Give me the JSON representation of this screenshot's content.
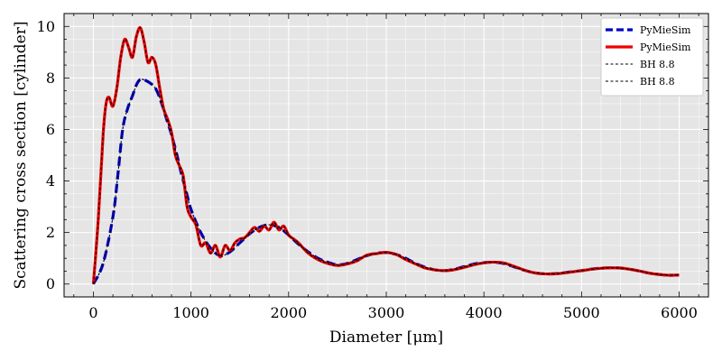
{
  "chart_data": {
    "type": "line",
    "title": "",
    "xlabel": "Diameter [μm]",
    "ylabel": "Scattering cross section [cylinder]",
    "xlim": [
      -300,
      6300
    ],
    "ylim": [
      -0.5,
      10.5
    ],
    "xticks": [
      0,
      1000,
      2000,
      3000,
      4000,
      5000,
      6000
    ],
    "xtick_labels": [
      "0",
      "1000",
      "2000",
      "3000",
      "4000",
      "5000",
      "6000"
    ],
    "yticks": [
      0,
      2,
      4,
      6,
      8,
      10
    ],
    "ytick_labels": [
      "0",
      "2",
      "4",
      "6",
      "8",
      "10"
    ],
    "grid": true,
    "legend_position": "top-right",
    "colors": {
      "plot_bg": "#e5e5e5",
      "grid": "#ffffff",
      "blue": "#0000cc",
      "red": "#ee0000",
      "black": "#000000"
    },
    "series": [
      {
        "name": "PyMieSim",
        "color": "#0000cc",
        "style": "dashed",
        "x": [
          0,
          100,
          200,
          250,
          300,
          350,
          400,
          450,
          500,
          600,
          650,
          700,
          750,
          800,
          850,
          900,
          950,
          1000,
          1100,
          1200,
          1300,
          1400,
          1500,
          1600,
          1700,
          1800,
          1900,
          2000,
          2100,
          2200,
          2300,
          2400,
          2500,
          2600,
          2700,
          2800,
          2900,
          3000,
          3100,
          3200,
          3300,
          3400,
          3500,
          3600,
          3700,
          3800,
          3900,
          4000,
          4100,
          4200,
          4300,
          4400,
          4500,
          4600,
          4700,
          4800,
          4900,
          5000,
          5100,
          5200,
          5300,
          5400,
          5500,
          5600,
          5700,
          5800,
          5900,
          6000
        ],
        "y": [
          0,
          0.8,
          2.6,
          4.2,
          6.0,
          6.8,
          7.3,
          7.8,
          7.95,
          7.75,
          7.5,
          7.0,
          6.4,
          5.8,
          5.1,
          4.3,
          3.6,
          2.9,
          2.0,
          1.4,
          1.1,
          1.25,
          1.6,
          1.95,
          2.2,
          2.3,
          2.2,
          1.9,
          1.55,
          1.25,
          1.0,
          0.85,
          0.75,
          0.8,
          0.95,
          1.1,
          1.2,
          1.22,
          1.15,
          1.0,
          0.8,
          0.65,
          0.55,
          0.52,
          0.58,
          0.68,
          0.78,
          0.83,
          0.85,
          0.8,
          0.68,
          0.55,
          0.45,
          0.4,
          0.4,
          0.43,
          0.48,
          0.52,
          0.58,
          0.62,
          0.63,
          0.62,
          0.57,
          0.5,
          0.42,
          0.37,
          0.34,
          0.35
        ]
      },
      {
        "name": "PyMieSim",
        "color": "#ee0000",
        "style": "solid",
        "x": [
          0,
          50,
          100,
          130,
          160,
          200,
          240,
          280,
          320,
          360,
          400,
          440,
          480,
          520,
          560,
          600,
          640,
          680,
          720,
          760,
          800,
          840,
          880,
          920,
          960,
          1000,
          1050,
          1100,
          1150,
          1200,
          1250,
          1300,
          1350,
          1400,
          1450,
          1500,
          1550,
          1600,
          1650,
          1700,
          1750,
          1800,
          1850,
          1900,
          1950,
          2000,
          2050,
          2100,
          2200,
          2300,
          2400,
          2500,
          2600,
          2700,
          2800,
          2900,
          3000,
          3100,
          3200,
          3300,
          3400,
          3500,
          3600,
          3700,
          3800,
          3900,
          4000,
          4100,
          4200,
          4300,
          4400,
          4500,
          4600,
          4700,
          4800,
          4900,
          5000,
          5100,
          5200,
          5300,
          5400,
          5500,
          5600,
          5700,
          5800,
          5900,
          6000
        ],
        "y": [
          0,
          2.5,
          5.8,
          7.0,
          7.25,
          6.9,
          7.6,
          8.8,
          9.5,
          9.2,
          8.8,
          9.6,
          9.95,
          9.4,
          8.6,
          8.8,
          8.5,
          7.6,
          6.8,
          6.4,
          5.9,
          5.0,
          4.6,
          4.2,
          3.0,
          2.6,
          2.3,
          1.5,
          1.6,
          1.2,
          1.5,
          1.05,
          1.5,
          1.3,
          1.6,
          1.75,
          1.8,
          2.0,
          2.2,
          2.05,
          2.25,
          2.1,
          2.4,
          2.1,
          2.25,
          1.9,
          1.75,
          1.6,
          1.2,
          0.95,
          0.8,
          0.72,
          0.78,
          0.9,
          1.12,
          1.18,
          1.23,
          1.15,
          0.95,
          0.78,
          0.62,
          0.55,
          0.52,
          0.56,
          0.65,
          0.75,
          0.82,
          0.85,
          0.82,
          0.7,
          0.56,
          0.45,
          0.4,
          0.39,
          0.42,
          0.47,
          0.52,
          0.57,
          0.61,
          0.63,
          0.62,
          0.57,
          0.5,
          0.42,
          0.37,
          0.34,
          0.35
        ]
      },
      {
        "name": "BH 8.8",
        "color": "#000000",
        "style": "dashed-thin",
        "ref": 0
      },
      {
        "name": "BH 8.8",
        "color": "#000000",
        "style": "dashed-thin",
        "ref": 1
      }
    ]
  }
}
